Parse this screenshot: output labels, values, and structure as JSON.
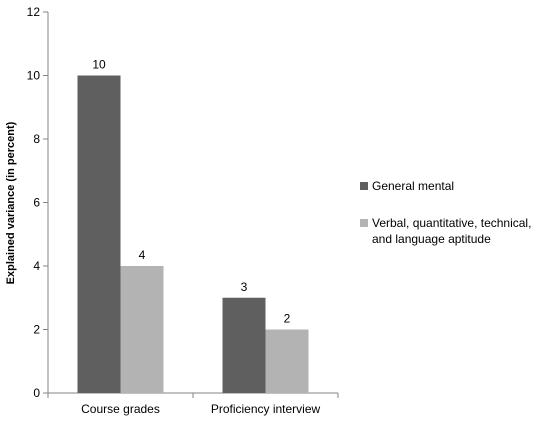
{
  "chart_data": {
    "type": "bar",
    "ylabel": "Explained variance (in percent)",
    "categories": [
      "Course grades",
      "Proficiency interview"
    ],
    "series": [
      {
        "name": "General mental",
        "color": "#5f5f5f",
        "values": [
          10,
          3
        ]
      },
      {
        "name": "Verbal, quantitative, technical, and language aptitude",
        "color": "#b3b3b3",
        "values": [
          4,
          2
        ]
      }
    ],
    "ylim": [
      0,
      12
    ],
    "yticks": [
      0,
      2,
      4,
      6,
      8,
      10,
      12
    ],
    "grid": false,
    "legend": "right"
  }
}
